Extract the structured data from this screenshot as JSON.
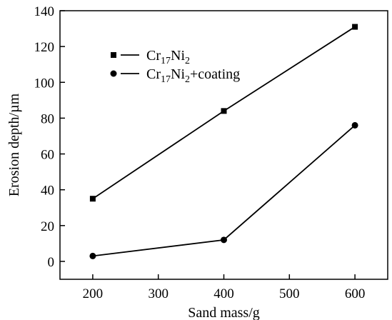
{
  "chart_data": {
    "type": "line",
    "title": "",
    "xlabel": "Sand mass/g",
    "ylabel": "Erosion depth/µm",
    "xlim": [
      150,
      650
    ],
    "ylim": [
      -10,
      140
    ],
    "xticks": [
      200,
      300,
      400,
      500,
      600
    ],
    "yticks": [
      0,
      20,
      40,
      60,
      80,
      100,
      120,
      140
    ],
    "x": [
      200,
      400,
      600
    ],
    "legend_position": "top-left",
    "grid": false,
    "series": [
      {
        "name": "Cr17Ni2",
        "name_parts": {
          "base1": "Cr",
          "sub1": "17",
          "base2": "Ni",
          "sub2": "2",
          "suffix": ""
        },
        "marker": "square",
        "values": [
          35,
          84,
          131
        ]
      },
      {
        "name": "Cr17Ni2+coating",
        "name_parts": {
          "base1": "Cr",
          "sub1": "17",
          "base2": "Ni",
          "sub2": "2",
          "suffix": "+coating"
        },
        "marker": "circle",
        "values": [
          3,
          12,
          76
        ]
      }
    ]
  }
}
